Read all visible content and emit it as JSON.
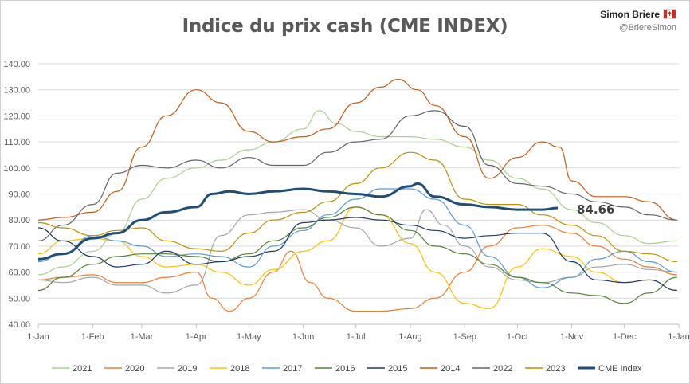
{
  "title": "Indice du prix cash (CME INDEX)",
  "author": {
    "name": "Simon Briere",
    "handle": "@BriereSimon"
  },
  "chart_data": {
    "type": "line",
    "title": "Indice du prix cash (CME INDEX)",
    "xlabel": "",
    "ylabel": "",
    "ylim": [
      40,
      140
    ],
    "y_ticks": [
      "40.00",
      "50.00",
      "60.00",
      "70.00",
      "80.00",
      "90.00",
      "100.00",
      "110.00",
      "120.00",
      "130.00",
      "140.00"
    ],
    "x_ticks": [
      "1-Jan",
      "1-Feb",
      "1-Mar",
      "1-Apr",
      "1-May",
      "1-Jun",
      "1-Jul",
      "1-Aug",
      "1-Sep",
      "1-Oct",
      "1-Nov",
      "1-Dec",
      "1-Jan"
    ],
    "grid": true,
    "legend_position": "bottom",
    "last_value_label": "84.66",
    "series": [
      {
        "name": "2021",
        "color": "#a9d18e",
        "width": 1.2,
        "points": [
          [
            "1-Jan",
            59
          ],
          [
            "15-Jan",
            62
          ],
          [
            "1-Feb",
            68
          ],
          [
            "15-Feb",
            75
          ],
          [
            "1-Mar",
            88
          ],
          [
            "15-Mar",
            96
          ],
          [
            "1-Apr",
            100
          ],
          [
            "15-Apr",
            103
          ],
          [
            "1-May",
            107
          ],
          [
            "15-May",
            110
          ],
          [
            "1-Jun",
            115
          ],
          [
            "10-Jun",
            122
          ],
          [
            "20-Jun",
            117
          ],
          [
            "1-Jul",
            114
          ],
          [
            "15-Jul",
            112
          ],
          [
            "1-Aug",
            112
          ],
          [
            "15-Aug",
            111
          ],
          [
            "1-Sep",
            108
          ],
          [
            "15-Sep",
            103
          ],
          [
            "1-Oct",
            96
          ],
          [
            "15-Oct",
            92
          ],
          [
            "1-Nov",
            84
          ],
          [
            "15-Nov",
            79
          ],
          [
            "1-Dec",
            74
          ],
          [
            "15-Dec",
            71
          ],
          [
            "31-Dec",
            72
          ]
        ]
      },
      {
        "name": "2020",
        "color": "#ed7d31",
        "width": 1.2,
        "points": [
          [
            "1-Jan",
            57
          ],
          [
            "15-Jan",
            58
          ],
          [
            "1-Feb",
            59
          ],
          [
            "15-Feb",
            56
          ],
          [
            "1-Mar",
            56
          ],
          [
            "15-Mar",
            58
          ],
          [
            "1-Apr",
            60
          ],
          [
            "10-Apr",
            50
          ],
          [
            "20-Apr",
            45
          ],
          [
            "1-May",
            50
          ],
          [
            "15-May",
            60
          ],
          [
            "25-May",
            68
          ],
          [
            "5-Jun",
            56
          ],
          [
            "15-Jun",
            50
          ],
          [
            "1-Jul",
            45
          ],
          [
            "15-Jul",
            45
          ],
          [
            "1-Aug",
            46
          ],
          [
            "15-Aug",
            50
          ],
          [
            "1-Sep",
            60
          ],
          [
            "15-Sep",
            70
          ],
          [
            "1-Oct",
            77
          ],
          [
            "15-Oct",
            78
          ],
          [
            "1-Nov",
            75
          ],
          [
            "15-Nov",
            70
          ],
          [
            "1-Dec",
            65
          ],
          [
            "15-Dec",
            62
          ],
          [
            "31-Dec",
            59
          ]
        ]
      },
      {
        "name": "2019",
        "color": "#a5a5a5",
        "width": 1.2,
        "points": [
          [
            "1-Jan",
            57
          ],
          [
            "15-Jan",
            56
          ],
          [
            "1-Feb",
            58
          ],
          [
            "15-Feb",
            55
          ],
          [
            "1-Mar",
            55
          ],
          [
            "15-Mar",
            52
          ],
          [
            "1-Apr",
            55
          ],
          [
            "15-Apr",
            74
          ],
          [
            "1-May",
            82
          ],
          [
            "15-May",
            83
          ],
          [
            "1-Jun",
            84
          ],
          [
            "15-Jun",
            80
          ],
          [
            "1-Jul",
            77
          ],
          [
            "15-Jul",
            70
          ],
          [
            "1-Aug",
            73
          ],
          [
            "10-Aug",
            84
          ],
          [
            "20-Aug",
            78
          ],
          [
            "1-Sep",
            70
          ],
          [
            "15-Sep",
            62
          ],
          [
            "1-Oct",
            57
          ],
          [
            "15-Oct",
            56
          ],
          [
            "1-Nov",
            58
          ],
          [
            "15-Nov",
            62
          ],
          [
            "1-Dec",
            63
          ],
          [
            "15-Dec",
            61
          ],
          [
            "31-Dec",
            60
          ]
        ]
      },
      {
        "name": "2018",
        "color": "#ffc000",
        "width": 1.2,
        "points": [
          [
            "1-Jan",
            67
          ],
          [
            "15-Jan",
            72
          ],
          [
            "1-Feb",
            73
          ],
          [
            "15-Feb",
            72
          ],
          [
            "1-Mar",
            66
          ],
          [
            "15-Mar",
            62
          ],
          [
            "1-Apr",
            63
          ],
          [
            "15-Apr",
            60
          ],
          [
            "1-May",
            55
          ],
          [
            "15-May",
            61
          ],
          [
            "1-Jun",
            68
          ],
          [
            "15-Jun",
            72
          ],
          [
            "1-Jul",
            85
          ],
          [
            "15-Jul",
            82
          ],
          [
            "1-Aug",
            71
          ],
          [
            "15-Aug",
            60
          ],
          [
            "1-Sep",
            48
          ],
          [
            "15-Sep",
            46
          ],
          [
            "1-Oct",
            62
          ],
          [
            "15-Oct",
            69
          ],
          [
            "1-Nov",
            66
          ],
          [
            "15-Nov",
            60
          ],
          [
            "1-Dec",
            56
          ],
          [
            "15-Dec",
            57
          ],
          [
            "31-Dec",
            53
          ]
        ]
      },
      {
        "name": "2017",
        "color": "#5b9bd5",
        "width": 1.2,
        "points": [
          [
            "1-Jan",
            64
          ],
          [
            "15-Jan",
            67
          ],
          [
            "1-Feb",
            74
          ],
          [
            "15-Feb",
            72
          ],
          [
            "1-Mar",
            70
          ],
          [
            "15-Mar",
            66
          ],
          [
            "1-Apr",
            67
          ],
          [
            "15-Apr",
            66
          ],
          [
            "1-May",
            62
          ],
          [
            "15-May",
            70
          ],
          [
            "1-Jun",
            76
          ],
          [
            "15-Jun",
            82
          ],
          [
            "1-Jul",
            88
          ],
          [
            "15-Jul",
            92
          ],
          [
            "1-Aug",
            92
          ],
          [
            "15-Aug",
            88
          ],
          [
            "1-Sep",
            78
          ],
          [
            "15-Sep",
            66
          ],
          [
            "1-Oct",
            58
          ],
          [
            "15-Oct",
            54
          ],
          [
            "1-Nov",
            58
          ],
          [
            "15-Nov",
            65
          ],
          [
            "1-Dec",
            68
          ],
          [
            "15-Dec",
            64
          ],
          [
            "31-Dec",
            60
          ]
        ]
      },
      {
        "name": "2016",
        "color": "#548235",
        "width": 1.2,
        "points": [
          [
            "1-Jan",
            53
          ],
          [
            "15-Jan",
            58
          ],
          [
            "1-Feb",
            63
          ],
          [
            "15-Feb",
            66
          ],
          [
            "1-Mar",
            67
          ],
          [
            "15-Mar",
            67
          ],
          [
            "1-Apr",
            66
          ],
          [
            "15-Apr",
            64
          ],
          [
            "1-May",
            67
          ],
          [
            "15-May",
            72
          ],
          [
            "1-Jun",
            77
          ],
          [
            "15-Jun",
            81
          ],
          [
            "1-Jul",
            85
          ],
          [
            "15-Jul",
            82
          ],
          [
            "1-Aug",
            76
          ],
          [
            "15-Aug",
            70
          ],
          [
            "1-Sep",
            67
          ],
          [
            "15-Sep",
            63
          ],
          [
            "1-Oct",
            58
          ],
          [
            "15-Oct",
            56
          ],
          [
            "1-Nov",
            52
          ],
          [
            "15-Nov",
            51
          ],
          [
            "1-Dec",
            48
          ],
          [
            "15-Dec",
            52
          ],
          [
            "31-Dec",
            58
          ]
        ]
      },
      {
        "name": "2015",
        "color": "#1f3864",
        "width": 1.2,
        "points": [
          [
            "1-Jan",
            77
          ],
          [
            "15-Jan",
            72
          ],
          [
            "1-Feb",
            66
          ],
          [
            "15-Feb",
            62
          ],
          [
            "1-Mar",
            63
          ],
          [
            "15-Mar",
            68
          ],
          [
            "1-Apr",
            63
          ],
          [
            "15-Apr",
            64
          ],
          [
            "1-May",
            66
          ],
          [
            "15-May",
            68
          ],
          [
            "1-Jun",
            79
          ],
          [
            "15-Jun",
            80
          ],
          [
            "1-Jul",
            81
          ],
          [
            "15-Jul",
            80
          ],
          [
            "1-Aug",
            78
          ],
          [
            "15-Aug",
            76
          ],
          [
            "1-Sep",
            73
          ],
          [
            "15-Sep",
            74
          ],
          [
            "1-Oct",
            75
          ],
          [
            "15-Oct",
            75
          ],
          [
            "1-Nov",
            64
          ],
          [
            "15-Nov",
            57
          ],
          [
            "1-Dec",
            56
          ],
          [
            "15-Dec",
            57
          ],
          [
            "31-Dec",
            53
          ]
        ]
      },
      {
        "name": "2014",
        "color": "#c55a11",
        "width": 1.2,
        "points": [
          [
            "1-Jan",
            80
          ],
          [
            "15-Jan",
            81
          ],
          [
            "1-Feb",
            83
          ],
          [
            "15-Feb",
            91
          ],
          [
            "1-Mar",
            108
          ],
          [
            "15-Mar",
            120
          ],
          [
            "1-Apr",
            130
          ],
          [
            "15-Apr",
            125
          ],
          [
            "1-May",
            114
          ],
          [
            "15-May",
            110
          ],
          [
            "1-Jun",
            112
          ],
          [
            "15-Jun",
            115
          ],
          [
            "1-Jul",
            125
          ],
          [
            "15-Jul",
            131
          ],
          [
            "25-Jul",
            134
          ],
          [
            "5-Aug",
            130
          ],
          [
            "15-Aug",
            124
          ],
          [
            "1-Sep",
            112
          ],
          [
            "15-Sep",
            96
          ],
          [
            "1-Oct",
            104
          ],
          [
            "15-Oct",
            110
          ],
          [
            "25-Oct",
            108
          ],
          [
            "1-Nov",
            95
          ],
          [
            "15-Nov",
            89
          ],
          [
            "1-Dec",
            89
          ],
          [
            "15-Dec",
            87
          ],
          [
            "31-Dec",
            80
          ]
        ]
      },
      {
        "name": "2022",
        "color": "#636363",
        "width": 1.2,
        "points": [
          [
            "1-Jan",
            72
          ],
          [
            "15-Jan",
            78
          ],
          [
            "1-Feb",
            86
          ],
          [
            "15-Feb",
            98
          ],
          [
            "1-Mar",
            101
          ],
          [
            "15-Mar",
            100
          ],
          [
            "1-Apr",
            103
          ],
          [
            "15-Apr",
            100
          ],
          [
            "1-May",
            104
          ],
          [
            "15-May",
            101
          ],
          [
            "1-Jun",
            101
          ],
          [
            "15-Jun",
            106
          ],
          [
            "1-Jul",
            110
          ],
          [
            "15-Jul",
            111
          ],
          [
            "1-Aug",
            120
          ],
          [
            "15-Aug",
            122
          ],
          [
            "1-Sep",
            116
          ],
          [
            "15-Sep",
            101
          ],
          [
            "1-Oct",
            94
          ],
          [
            "15-Oct",
            93
          ],
          [
            "1-Nov",
            90
          ],
          [
            "15-Nov",
            87
          ],
          [
            "1-Dec",
            85
          ],
          [
            "15-Dec",
            82
          ],
          [
            "31-Dec",
            80
          ]
        ]
      },
      {
        "name": "2023",
        "color": "#bf9000",
        "width": 1.2,
        "points": [
          [
            "1-Jan",
            79
          ],
          [
            "15-Jan",
            77
          ],
          [
            "1-Feb",
            74
          ],
          [
            "15-Feb",
            76
          ],
          [
            "1-Mar",
            77
          ],
          [
            "15-Mar",
            72
          ],
          [
            "1-Apr",
            69
          ],
          [
            "15-Apr",
            68
          ],
          [
            "1-May",
            75
          ],
          [
            "15-May",
            80
          ],
          [
            "1-Jun",
            83
          ],
          [
            "15-Jun",
            87
          ],
          [
            "1-Jul",
            94
          ],
          [
            "15-Jul",
            100
          ],
          [
            "1-Aug",
            106
          ],
          [
            "15-Aug",
            103
          ],
          [
            "1-Sep",
            88
          ],
          [
            "15-Sep",
            86
          ],
          [
            "1-Oct",
            86
          ],
          [
            "15-Oct",
            82
          ],
          [
            "1-Nov",
            78
          ],
          [
            "15-Nov",
            74
          ],
          [
            "1-Dec",
            68
          ],
          [
            "15-Dec",
            67
          ],
          [
            "31-Dec",
            64
          ]
        ]
      },
      {
        "name": "CME Index",
        "color": "#1f4e79",
        "width": 3,
        "points": [
          [
            "1-Jan",
            65
          ],
          [
            "15-Jan",
            67
          ],
          [
            "1-Feb",
            73
          ],
          [
            "15-Feb",
            75
          ],
          [
            "1-Mar",
            80
          ],
          [
            "15-Mar",
            83
          ],
          [
            "1-Apr",
            85
          ],
          [
            "10-Apr",
            90
          ],
          [
            "20-Apr",
            91
          ],
          [
            "1-May",
            90
          ],
          [
            "15-May",
            91
          ],
          [
            "1-Jun",
            92
          ],
          [
            "15-Jun",
            91
          ],
          [
            "1-Jul",
            90
          ],
          [
            "15-Jul",
            89
          ],
          [
            "1-Aug",
            93
          ],
          [
            "5-Aug",
            94
          ],
          [
            "15-Aug",
            89
          ],
          [
            "1-Sep",
            86
          ],
          [
            "15-Sep",
            85
          ],
          [
            "1-Oct",
            84
          ],
          [
            "15-Oct",
            84
          ],
          [
            "24-Oct",
            84.66
          ]
        ]
      }
    ]
  }
}
